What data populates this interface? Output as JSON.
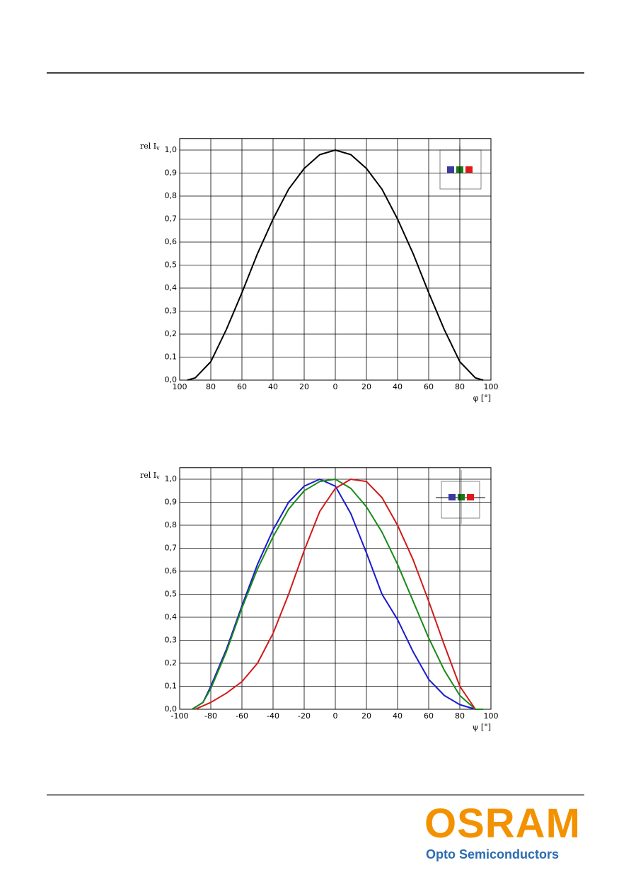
{
  "chart_data": [
    {
      "type": "line",
      "ylabel": "rel I",
      "ylabel_subscript": "v",
      "xlabel": "φ [°]",
      "xlim": [
        -100,
        100
      ],
      "ylim": [
        0,
        1.05
      ],
      "grid": true,
      "xticks": [
        {
          "value": -100,
          "label": "100"
        },
        {
          "value": -80,
          "label": "80"
        },
        {
          "value": -60,
          "label": "60"
        },
        {
          "value": -40,
          "label": "40"
        },
        {
          "value": -20,
          "label": "20"
        },
        0,
        20,
        40,
        60,
        80,
        100
      ],
      "yticks": [
        {
          "value": 0,
          "label": "0,0"
        },
        {
          "value": 0.1,
          "label": "0,1"
        },
        {
          "value": 0.2,
          "label": "0,2"
        },
        {
          "value": 0.3,
          "label": "0,3"
        },
        {
          "value": 0.4,
          "label": "0,4"
        },
        {
          "value": 0.5,
          "label": "0,5"
        },
        {
          "value": 0.6,
          "label": "0,6"
        },
        {
          "value": 0.7,
          "label": "0,7"
        },
        {
          "value": 0.8,
          "label": "0,8"
        },
        {
          "value": 0.9,
          "label": "0,9"
        },
        {
          "value": 1.0,
          "label": "1,0"
        }
      ],
      "series": [
        {
          "color": "#000000",
          "x": [
            -95,
            -90,
            -80,
            -70,
            -60,
            -50,
            -40,
            -30,
            -20,
            -10,
            0,
            10,
            20,
            30,
            40,
            50,
            60,
            70,
            80,
            90,
            95
          ],
          "values": [
            0,
            0.01,
            0.08,
            0.22,
            0.38,
            0.55,
            0.7,
            0.83,
            0.92,
            0.98,
            1.0,
            0.98,
            0.92,
            0.83,
            0.7,
            0.55,
            0.38,
            0.22,
            0.08,
            0.01,
            0
          ]
        }
      ]
    },
    {
      "type": "line",
      "ylabel": "rel I",
      "ylabel_subscript": "v",
      "xlabel": "ψ [°]",
      "xlim": [
        -100,
        100
      ],
      "ylim": [
        0,
        1.05
      ],
      "grid": true,
      "xticks": [
        -100,
        -80,
        -60,
        -40,
        -20,
        0,
        20,
        40,
        60,
        80,
        100
      ],
      "yticks": [
        {
          "value": 0,
          "label": "0,0"
        },
        {
          "value": 0.1,
          "label": "0,1"
        },
        {
          "value": 0.2,
          "label": "0,2"
        },
        {
          "value": 0.3,
          "label": "0,3"
        },
        {
          "value": 0.4,
          "label": "0,4"
        },
        {
          "value": 0.5,
          "label": "0,5"
        },
        {
          "value": 0.6,
          "label": "0,6"
        },
        {
          "value": 0.7,
          "label": "0,7"
        },
        {
          "value": 0.8,
          "label": "0,8"
        },
        {
          "value": 0.9,
          "label": "0,9"
        },
        {
          "value": 1.0,
          "label": "1,0"
        }
      ],
      "series": [
        {
          "color": "#1a1ad0",
          "x": [
            -92,
            -85,
            -80,
            -70,
            -60,
            -50,
            -40,
            -30,
            -20,
            -10,
            0,
            10,
            20,
            30,
            40,
            50,
            60,
            70,
            80,
            90
          ],
          "values": [
            0,
            0.03,
            0.1,
            0.26,
            0.45,
            0.63,
            0.78,
            0.9,
            0.97,
            1.0,
            0.97,
            0.85,
            0.68,
            0.5,
            0.39,
            0.25,
            0.13,
            0.06,
            0.02,
            0
          ]
        },
        {
          "color": "#1a8a1a",
          "x": [
            -92,
            -85,
            -80,
            -70,
            -60,
            -50,
            -40,
            -30,
            -20,
            -10,
            0,
            10,
            20,
            30,
            40,
            50,
            60,
            70,
            80,
            90,
            95
          ],
          "values": [
            0,
            0.03,
            0.09,
            0.25,
            0.44,
            0.61,
            0.75,
            0.87,
            0.95,
            0.99,
            1.0,
            0.96,
            0.88,
            0.77,
            0.63,
            0.47,
            0.31,
            0.17,
            0.06,
            0,
            0
          ]
        },
        {
          "color": "#d01a1a",
          "x": [
            -90,
            -80,
            -70,
            -60,
            -50,
            -40,
            -30,
            -20,
            -10,
            0,
            10,
            20,
            30,
            40,
            50,
            60,
            70,
            80,
            90
          ],
          "values": [
            0,
            0.03,
            0.07,
            0.12,
            0.2,
            0.33,
            0.5,
            0.69,
            0.86,
            0.96,
            1.0,
            0.99,
            0.92,
            0.8,
            0.65,
            0.47,
            0.28,
            0.1,
            0
          ]
        }
      ]
    }
  ],
  "footer": {
    "logo": "OSRAM",
    "tagline": "Opto Semiconductors"
  }
}
